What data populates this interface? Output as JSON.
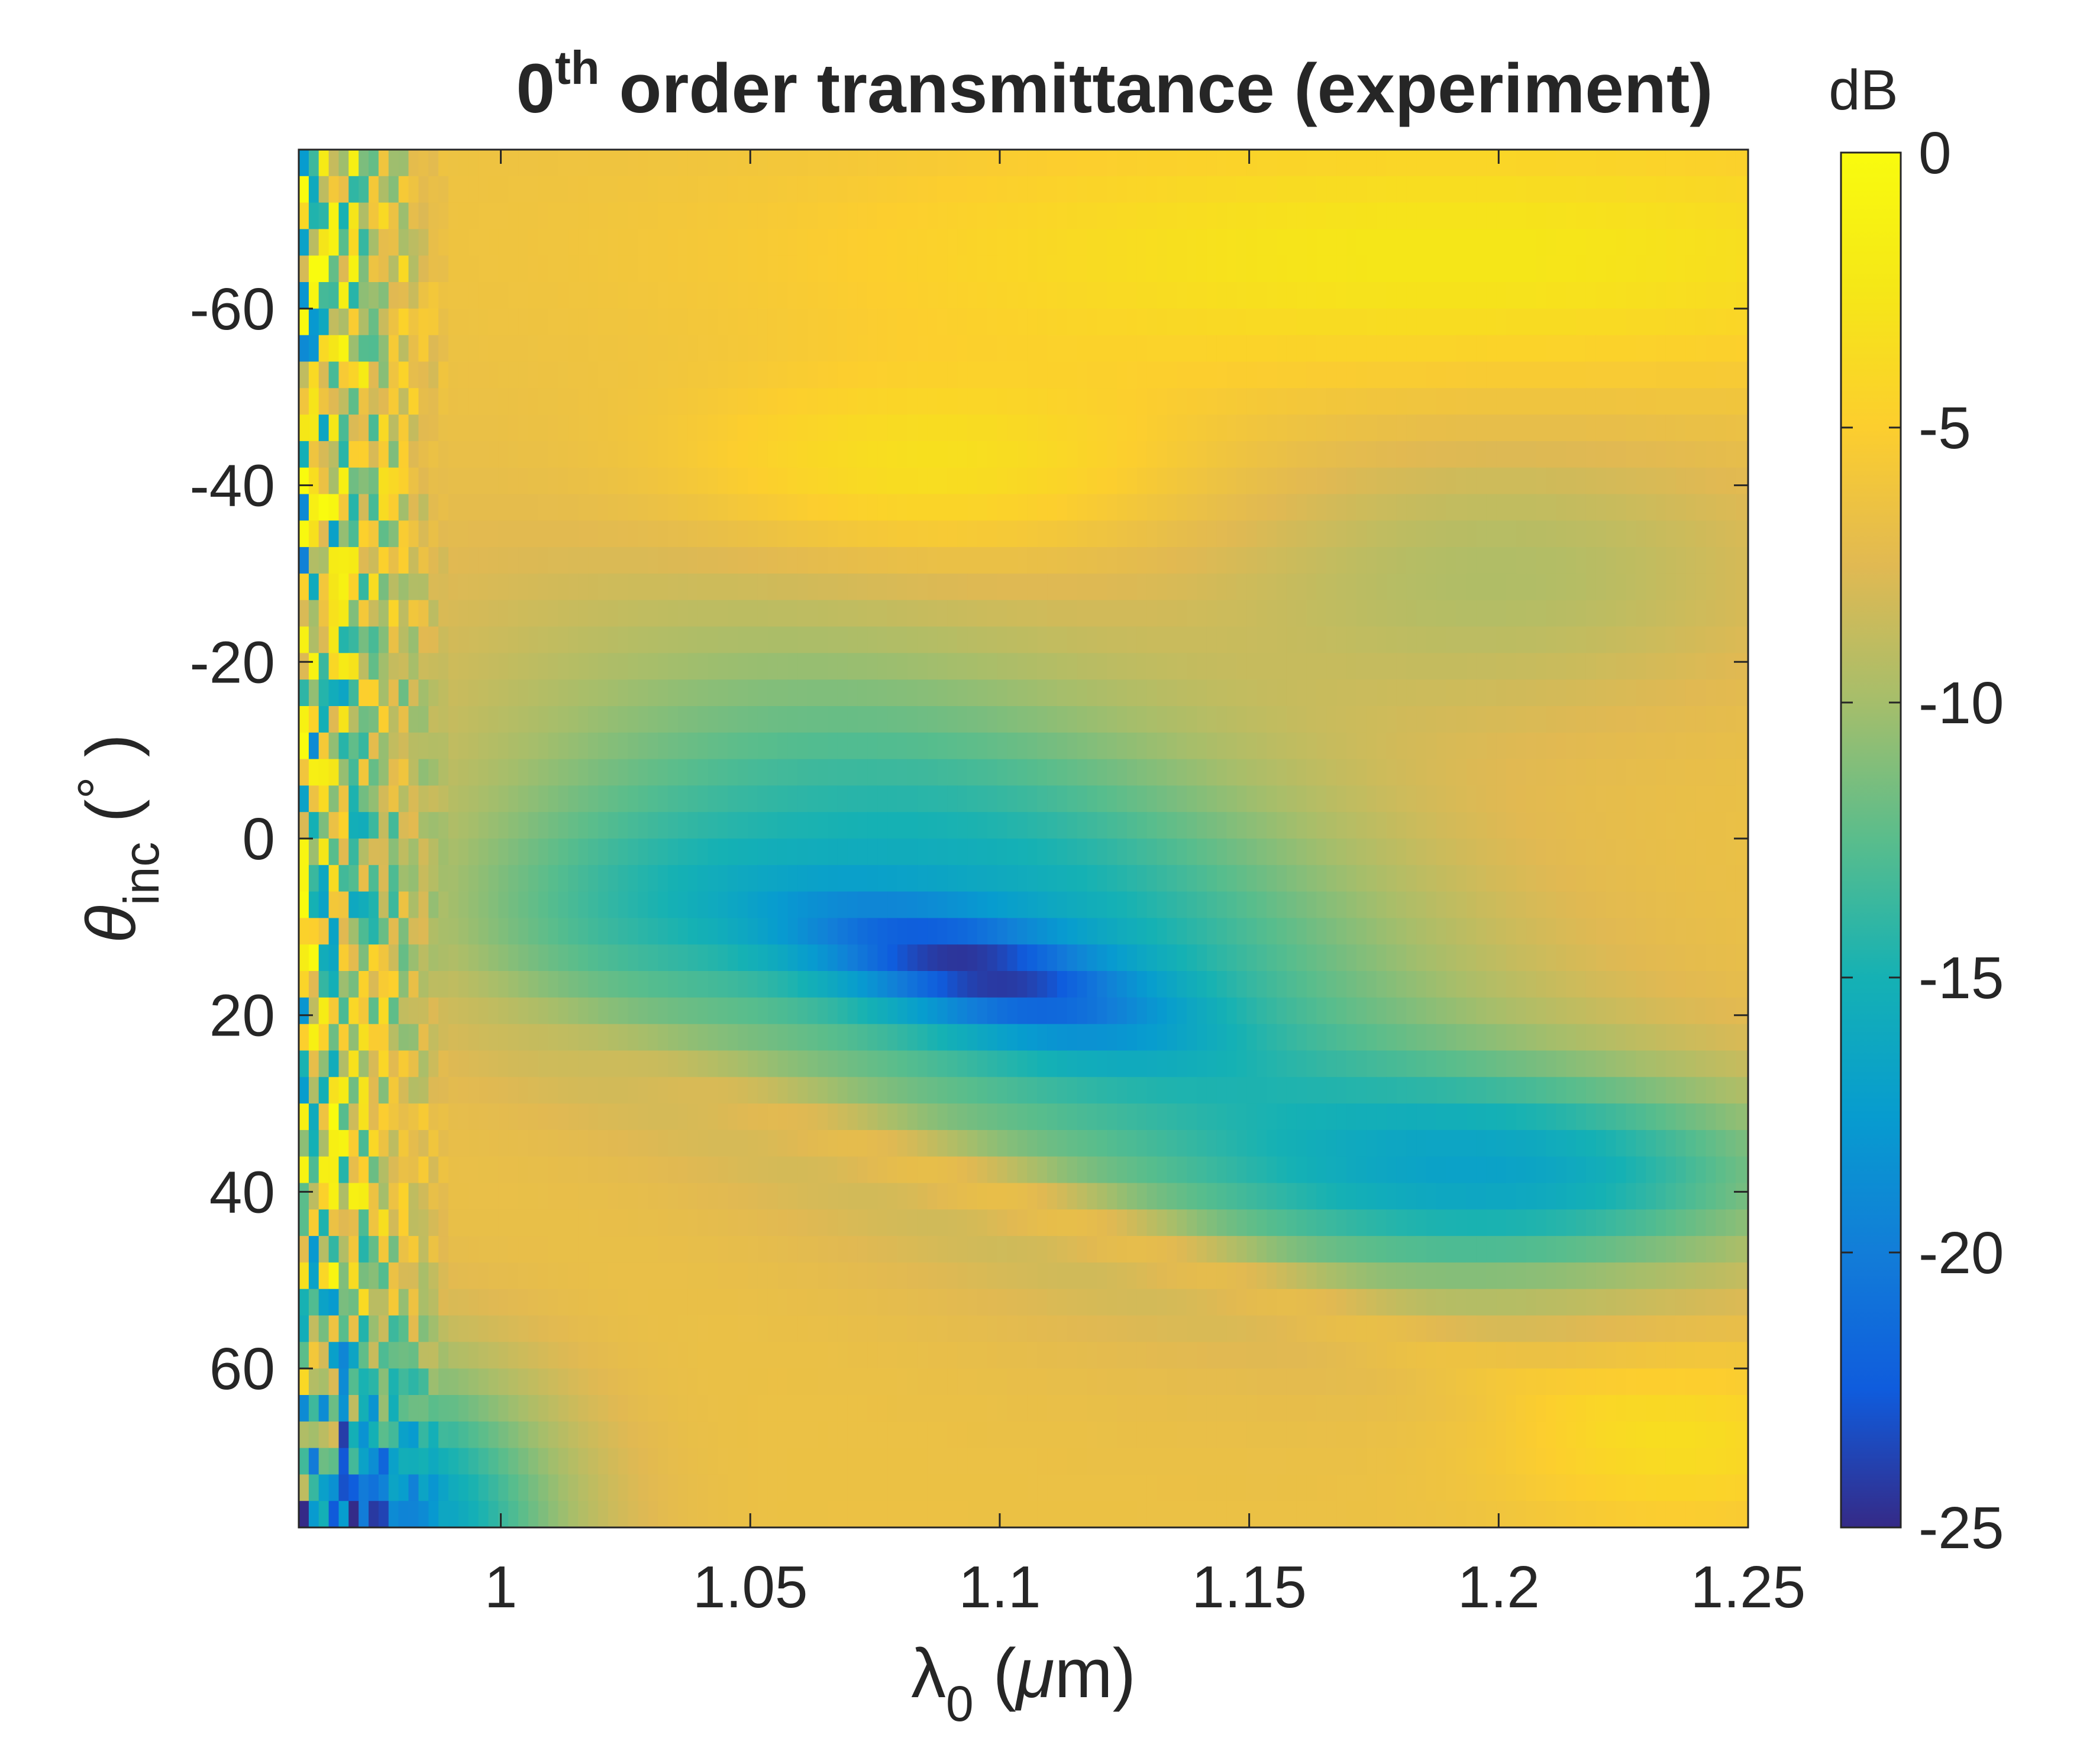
{
  "chart_data": {
    "type": "heatmap",
    "title": {
      "prefix": "0",
      "superscript": "th",
      "main": " order transmittance (experiment)"
    },
    "xlabel": {
      "symbol": "λ",
      "subscript": "0",
      "unit_open": " (",
      "unit_symbol": "μ",
      "unit_rest": "m)"
    },
    "ylabel": {
      "symbol": "θ",
      "subscript": "inc",
      "unit_open": " (",
      "degree": "°",
      "unit_close": " )"
    },
    "xlim": [
      0.9595,
      1.25
    ],
    "ylim": [
      -78,
      78
    ],
    "y_reversed": true,
    "x_ticks": [
      {
        "value": 1.0,
        "label": "1"
      },
      {
        "value": 1.05,
        "label": "1.05"
      },
      {
        "value": 1.1,
        "label": "1.1"
      },
      {
        "value": 1.15,
        "label": "1.15"
      },
      {
        "value": 1.2,
        "label": "1.2"
      },
      {
        "value": 1.25,
        "label": "1.25"
      }
    ],
    "y_ticks": [
      {
        "value": -60,
        "label": "-60"
      },
      {
        "value": -40,
        "label": "-40"
      },
      {
        "value": -20,
        "label": "-20"
      },
      {
        "value": 0,
        "label": "0"
      },
      {
        "value": 20,
        "label": "20"
      },
      {
        "value": 40,
        "label": "40"
      },
      {
        "value": 60,
        "label": "60"
      }
    ],
    "colorbar": {
      "label": "dB",
      "range": [
        -25,
        0
      ],
      "colormap": "parula",
      "ticks": [
        {
          "value": 0,
          "label": "0"
        },
        {
          "value": -5,
          "label": "-5"
        },
        {
          "value": -10,
          "label": "-10"
        },
        {
          "value": -15,
          "label": "-15"
        },
        {
          "value": -20,
          "label": "-20"
        },
        {
          "value": -25,
          "label": "-25"
        }
      ]
    },
    "field": {
      "background_db": -6.5,
      "angle_step_deg": 3,
      "wavelength_step_um": 0.002,
      "noisy_edge_um": [
        0.9595,
        0.99
      ],
      "features": [
        {
          "name": "deep minimum",
          "x": 1.095,
          "y": 15,
          "db": -24.5
        },
        {
          "name": "broad blue basin",
          "x": 1.1,
          "y": 10,
          "db": -16
        },
        {
          "name": "lower blue lobe",
          "x": 1.19,
          "y": 38,
          "db": -15
        },
        {
          "name": "lower-left blue corner",
          "x": 0.99,
          "y": 76,
          "db": -20
        },
        {
          "name": "upper bright band",
          "x": 1.2,
          "y": -68,
          "db": -2
        },
        {
          "name": "upper-left bright lobe",
          "x": 1.08,
          "y": -44,
          "db": -3
        },
        {
          "name": "right green lobe",
          "x": 1.2,
          "y": -32,
          "db": -9
        },
        {
          "name": "lower bright streak",
          "x": 1.11,
          "y": 42,
          "db": -4
        },
        {
          "name": "lower-right bright lobe",
          "x": 1.23,
          "y": 66,
          "db": -3.5
        }
      ]
    }
  }
}
